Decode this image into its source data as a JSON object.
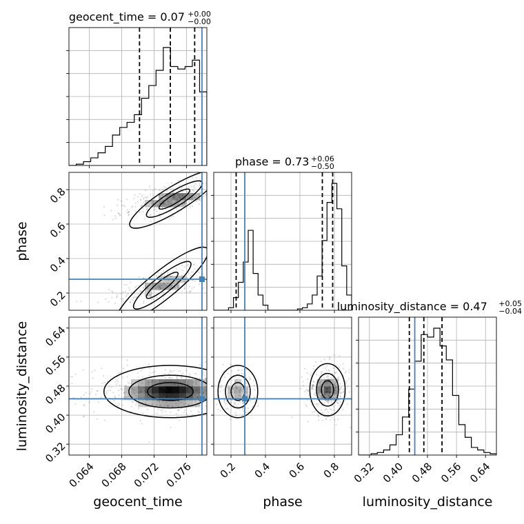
{
  "chart_data": {
    "type": "corner",
    "truth_color": "#4682b4",
    "grid": true,
    "parameters": [
      {
        "name": "geocent_time",
        "axis_label": "geocent_time",
        "title_prefix": "geocent_time = ",
        "median": "0.07",
        "upper": "+0.00",
        "lower": "−0.00",
        "range": [
          0.0615,
          0.0785
        ],
        "ticks": [
          0.064,
          0.068,
          0.072,
          0.076
        ],
        "tick_labels": [
          "0.064",
          "0.068",
          "0.072",
          "0.076"
        ],
        "truth": 0.0779,
        "quantiles": [
          0.0702,
          0.074,
          0.077
        ],
        "hist": [
          0.0,
          0.01,
          0.03,
          0.06,
          0.1,
          0.15,
          0.24,
          0.3,
          0.34,
          0.4,
          0.53,
          0.63,
          0.75,
          0.93,
          0.78,
          0.76,
          0.78,
          0.83,
          0.58
        ]
      },
      {
        "name": "phase",
        "axis_label": "phase",
        "title_prefix": "phase = ",
        "median": "0.73",
        "upper": "+0.06",
        "lower": "−0.50",
        "range": [
          0.1,
          0.9
        ],
        "ticks": [
          0.2,
          0.4,
          0.6,
          0.8
        ],
        "tick_labels": [
          "0.2",
          "0.4",
          "0.6",
          "0.8"
        ],
        "truth": 0.28,
        "quantiles": [
          0.23,
          0.73,
          0.79
        ],
        "hist": [
          0.0,
          0.0,
          0.0,
          0.02,
          0.1,
          0.22,
          0.38,
          0.63,
          0.29,
          0.12,
          0.04,
          0.0,
          0.0,
          0.0,
          0.0,
          0.0,
          0.0,
          0.01,
          0.02,
          0.05,
          0.12,
          0.27,
          0.55,
          0.85,
          1.0,
          0.8,
          0.35,
          0.12
        ]
      },
      {
        "name": "luminosity_distance",
        "axis_label": "luminosity_distance",
        "title_prefix": "luminosity_distance = ",
        "median": "0.47",
        "upper": "+0.05",
        "lower": "−0.04",
        "range": [
          0.29,
          0.67
        ],
        "ticks": [
          0.32,
          0.4,
          0.48,
          0.56,
          0.64
        ],
        "tick_labels": [
          "0.32",
          "0.40",
          "0.48",
          "0.56",
          "0.64"
        ],
        "truth": 0.445,
        "quantiles": [
          0.43,
          0.47,
          0.52
        ],
        "hist": [
          0.0,
          0.0,
          0.01,
          0.02,
          0.04,
          0.08,
          0.16,
          0.3,
          0.52,
          0.74,
          0.95,
          0.93,
          1.0,
          0.86,
          0.75,
          0.47,
          0.24,
          0.14,
          0.06,
          0.04,
          0.02,
          0.01
        ]
      }
    ],
    "pairs": [
      {
        "x": 0,
        "y": 1,
        "truth_marker": [
          0.0779,
          0.28
        ],
        "blobs": [
          {
            "cx": 0.073,
            "cy": 0.245,
            "sx": 0.0028,
            "sy": 0.05,
            "rot": 0.68,
            "w": 0.4
          },
          {
            "cx": 0.0745,
            "cy": 0.745,
            "sx": 0.0025,
            "sy": 0.045,
            "rot": 0.55,
            "w": 0.6
          }
        ]
      },
      {
        "x": 0,
        "y": 2,
        "truth_marker": [
          0.0779,
          0.445
        ],
        "blobs": [
          {
            "cx": 0.074,
            "cy": 0.465,
            "sx": 0.0032,
            "sy": 0.045,
            "rot": 0.0,
            "w": 1.0
          }
        ]
      },
      {
        "x": 1,
        "y": 2,
        "truth_marker": [
          0.28,
          0.445
        ],
        "blobs": [
          {
            "cx": 0.24,
            "cy": 0.465,
            "sx": 0.045,
            "sy": 0.045,
            "rot": 0.0,
            "w": 0.35
          },
          {
            "cx": 0.76,
            "cy": 0.47,
            "sx": 0.04,
            "sy": 0.045,
            "rot": 0.0,
            "w": 0.65
          }
        ]
      }
    ]
  }
}
